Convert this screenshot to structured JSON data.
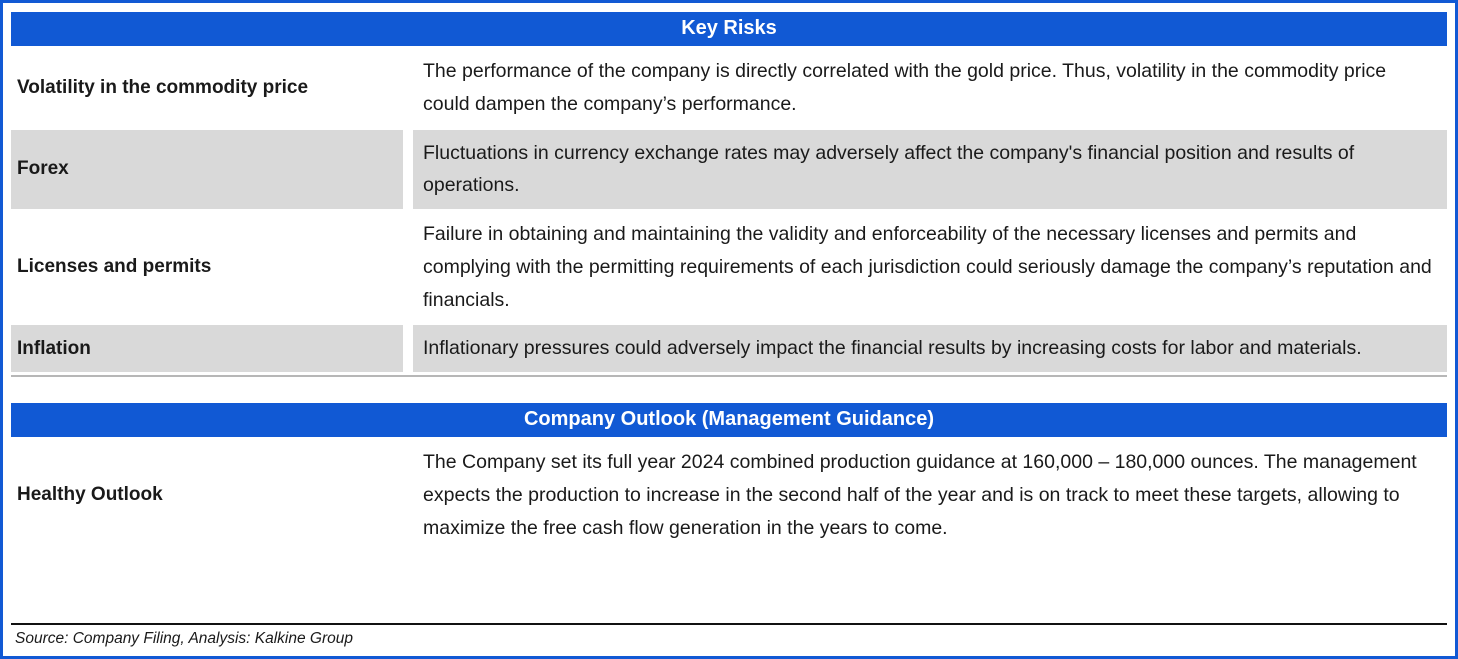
{
  "colors": {
    "header_blue": "#1159d4",
    "border_blue": "#1159d4",
    "row_shade_gray": "#d9d9d9",
    "text_color": "#1a1a1a"
  },
  "risks_table": {
    "title": "Key Risks",
    "rows": [
      {
        "label": "Volatility in the commodity price",
        "text": "The performance of the company is directly correlated with the gold price. Thus, volatility in the commodity price could dampen the company’s performance."
      },
      {
        "label": "Forex",
        "text": "Fluctuations in currency exchange rates may adversely affect the company's financial position and results of operations."
      },
      {
        "label": "Licenses and permits",
        "text": "Failure in obtaining and maintaining the validity and enforceability of the necessary licenses and permits and complying with the permitting requirements of each jurisdiction could seriously damage the company’s reputation and financials."
      },
      {
        "label": "Inflation",
        "text": "Inflationary pressures could adversely impact the financial results by increasing costs for labor and materials."
      }
    ]
  },
  "outlook_table": {
    "title": "Company Outlook (Management Guidance)",
    "rows": [
      {
        "label": "Healthy Outlook",
        "text": "The Company set its full year 2024 combined production guidance at 160,000 – 180,000 ounces. The management expects the production to increase in the second half of the year and is on track to meet these targets, allowing to maximize the free cash flow generation in the years to come."
      }
    ]
  },
  "footer": {
    "source": "Source: Company Filing, Analysis: Kalkine Group"
  }
}
